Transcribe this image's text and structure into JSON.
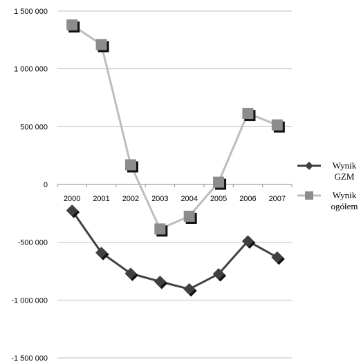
{
  "chart_data": {
    "type": "line",
    "categories": [
      "2000",
      "2001",
      "2002",
      "2003",
      "2004",
      "2005",
      "2006",
      "2007"
    ],
    "ylim": [
      -1500000,
      1500000
    ],
    "yticks": [
      1500000,
      1000000,
      500000,
      0,
      -500000,
      -1000000,
      -1500000
    ],
    "ytick_labels": [
      "1 500 000",
      "1 000 000",
      "500 000",
      "0",
      "-500 000",
      "-1 000 000",
      "-1 500 000"
    ],
    "grid": true,
    "legend_position": "right",
    "series": [
      {
        "name_lines": [
          "Wynik",
          "GZM"
        ],
        "marker": "diamond",
        "color": "#404040",
        "values": [
          -225000,
          -590000,
          -770000,
          -840000,
          -905000,
          -775000,
          -490000,
          -630000
        ]
      },
      {
        "name_lines": [
          "Wynik",
          "ogółem"
        ],
        "marker": "square",
        "color": "#bdbdbd",
        "marker_color": "#8c8c8c",
        "values": [
          1380000,
          1210000,
          170000,
          -385000,
          -275000,
          20000,
          615000,
          515000
        ]
      }
    ]
  }
}
